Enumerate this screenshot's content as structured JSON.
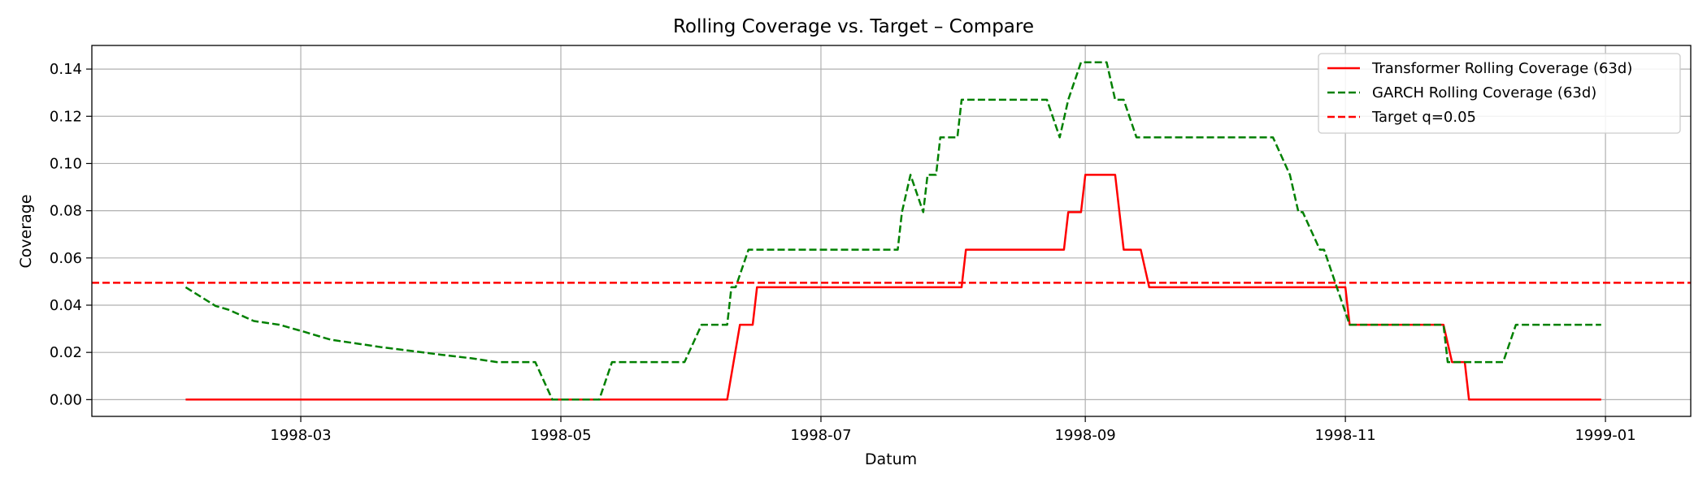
{
  "chart_data": {
    "type": "line",
    "title": "Rolling Coverage vs. Target – Compare",
    "xlabel": "Datum",
    "ylabel": "Coverage",
    "xlim": [
      "1998-01-11",
      "1999-01-21"
    ],
    "ylim": [
      -0.0071,
      0.15
    ],
    "grid": true,
    "legend_position": "top-right",
    "x_ticks": [
      "1998-03",
      "1998-05",
      "1998-07",
      "1998-09",
      "1998-11",
      "1999-01"
    ],
    "y_ticks": [
      "0.00",
      "0.02",
      "0.04",
      "0.06",
      "0.08",
      "0.10",
      "0.12",
      "0.14"
    ],
    "series": [
      {
        "name": "Transformer Rolling Coverage (63d)",
        "color": "#ff0000",
        "style": "solid",
        "points": [
          [
            "1998-02-02",
            0.0
          ],
          [
            "1998-06-09",
            0.0
          ],
          [
            "1998-06-12",
            0.0317
          ],
          [
            "1998-06-15",
            0.0317
          ],
          [
            "1998-06-16",
            0.0476
          ],
          [
            "1998-08-03",
            0.0476
          ],
          [
            "1998-08-04",
            0.0635
          ],
          [
            "1998-08-27",
            0.0635
          ],
          [
            "1998-08-28",
            0.0794
          ],
          [
            "1998-08-31",
            0.0794
          ],
          [
            "1998-09-01",
            0.0952
          ],
          [
            "1998-09-08",
            0.0952
          ],
          [
            "1998-09-10",
            0.0635
          ],
          [
            "1998-09-14",
            0.0635
          ],
          [
            "1998-09-16",
            0.0476
          ],
          [
            "1998-11-01",
            0.0476
          ],
          [
            "1998-11-02",
            0.0317
          ],
          [
            "1998-11-24",
            0.0317
          ],
          [
            "1998-11-26",
            0.0159
          ],
          [
            "1998-11-29",
            0.0159
          ],
          [
            "1998-11-30",
            0.0
          ],
          [
            "1998-12-31",
            0.0
          ]
        ]
      },
      {
        "name": "GARCH Rolling Coverage (63d)",
        "color": "#008000",
        "style": "dashed",
        "points": [
          [
            "1998-02-02",
            0.0476
          ],
          [
            "1998-02-09",
            0.0397
          ],
          [
            "1998-02-12",
            0.0381
          ],
          [
            "1998-02-18",
            0.0333
          ],
          [
            "1998-02-24",
            0.0317
          ],
          [
            "1998-03-02",
            0.0286
          ],
          [
            "1998-03-08",
            0.0254
          ],
          [
            "1998-03-14",
            0.0238
          ],
          [
            "1998-03-20",
            0.0222
          ],
          [
            "1998-03-27",
            0.0206
          ],
          [
            "1998-04-03",
            0.019
          ],
          [
            "1998-04-10",
            0.0175
          ],
          [
            "1998-04-16",
            0.0159
          ],
          [
            "1998-04-25",
            0.0159
          ],
          [
            "1998-04-29",
            0.0
          ],
          [
            "1998-05-10",
            0.0
          ],
          [
            "1998-05-13",
            0.0159
          ],
          [
            "1998-05-30",
            0.0159
          ],
          [
            "1998-06-03",
            0.0317
          ],
          [
            "1998-06-09",
            0.0317
          ],
          [
            "1998-06-10",
            0.0476
          ],
          [
            "1998-06-11",
            0.0476
          ],
          [
            "1998-06-14",
            0.0635
          ],
          [
            "1998-07-19",
            0.0635
          ],
          [
            "1998-07-20",
            0.0794
          ],
          [
            "1998-07-22",
            0.0952
          ],
          [
            "1998-07-25",
            0.0794
          ],
          [
            "1998-07-26",
            0.0952
          ],
          [
            "1998-07-28",
            0.0952
          ],
          [
            "1998-07-29",
            0.1111
          ],
          [
            "1998-08-02",
            0.1111
          ],
          [
            "1998-08-03",
            0.127
          ],
          [
            "1998-08-23",
            0.127
          ],
          [
            "1998-08-26",
            0.1111
          ],
          [
            "1998-08-28",
            0.127
          ],
          [
            "1998-08-31",
            0.1429
          ],
          [
            "1998-09-06",
            0.1429
          ],
          [
            "1998-09-08",
            0.127
          ],
          [
            "1998-09-10",
            0.127
          ],
          [
            "1998-09-13",
            0.1111
          ],
          [
            "1998-10-15",
            0.1111
          ],
          [
            "1998-10-19",
            0.0952
          ],
          [
            "1998-10-21",
            0.0794
          ],
          [
            "1998-10-22",
            0.0794
          ],
          [
            "1998-10-26",
            0.0635
          ],
          [
            "1998-10-27",
            0.0635
          ],
          [
            "1998-10-30",
            0.0476
          ],
          [
            "1998-11-02",
            0.0317
          ],
          [
            "1998-11-24",
            0.0317
          ],
          [
            "1998-11-25",
            0.0159
          ],
          [
            "1998-12-08",
            0.0159
          ],
          [
            "1998-12-11",
            0.0317
          ],
          [
            "1998-12-31",
            0.0317
          ]
        ]
      },
      {
        "name": "Target q=0.05",
        "color": "#ff0000",
        "style": "dashed",
        "hline": 0.0495
      }
    ]
  }
}
